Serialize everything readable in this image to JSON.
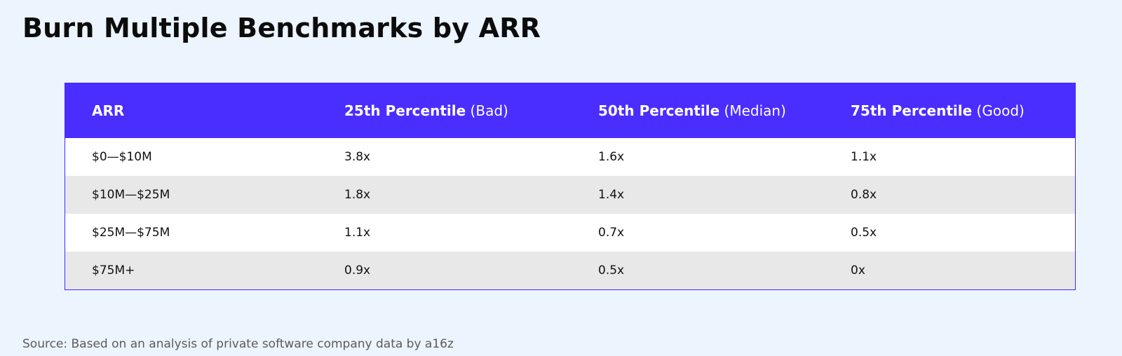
{
  "page": {
    "title": "Burn Multiple Benchmarks by ARR",
    "source": "Source: Based on an analysis of private software company data by a16z"
  },
  "colors": {
    "background": "#ecf4fe",
    "header_fill": "#4a2dff",
    "row_alt_fill": "#e8e8e8"
  },
  "table": {
    "headers": [
      {
        "main": "ARR",
        "qualifier": ""
      },
      {
        "main": "25th Percentile",
        "qualifier": " (Bad)"
      },
      {
        "main": "50th Percentile",
        "qualifier": " (Median)"
      },
      {
        "main": "75th Percentile",
        "qualifier": " (Good)"
      }
    ],
    "rows": [
      [
        "$0—$10M",
        "3.8x",
        "1.6x",
        "1.1x"
      ],
      [
        "$10M—$25M",
        "1.8x",
        "1.4x",
        "0.8x"
      ],
      [
        "$25M—$75M",
        "1.1x",
        "0.7x",
        "0.5x"
      ],
      [
        "$75M+",
        "0.9x",
        "0.5x",
        "0x"
      ]
    ]
  }
}
